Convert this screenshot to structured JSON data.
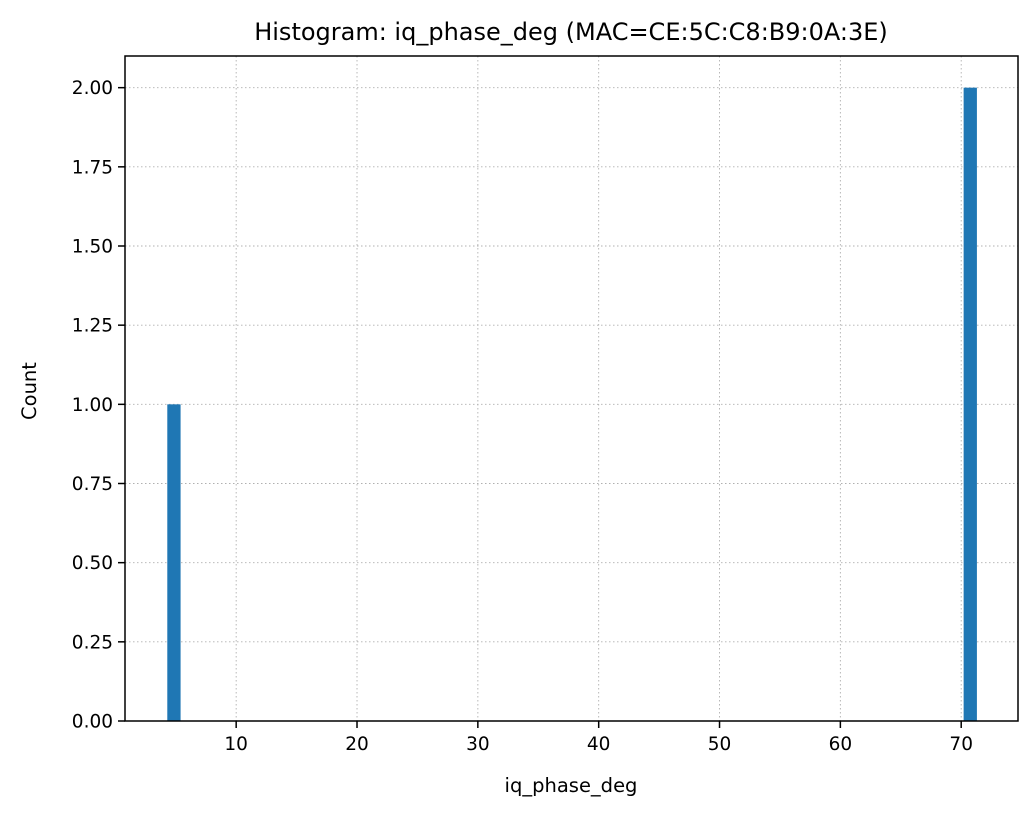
{
  "chart_data": {
    "type": "bar",
    "title": "Histogram: iq_phase_deg (MAC=CE:5C:C8:B9:0A:3E)",
    "xlabel": "iq_phase_deg",
    "ylabel": "Count",
    "xlim": [
      0.8,
      74.7
    ],
    "ylim": [
      0,
      2.1
    ],
    "xticks": [
      10,
      20,
      30,
      40,
      50,
      60,
      70
    ],
    "xtick_labels": [
      "10",
      "20",
      "30",
      "40",
      "50",
      "60",
      "70"
    ],
    "yticks": [
      0,
      0.25,
      0.5,
      0.75,
      1.0,
      1.25,
      1.5,
      1.75,
      2.0
    ],
    "ytick_labels": [
      "0.00",
      "0.25",
      "0.50",
      "0.75",
      "1.00",
      "1.25",
      "1.50",
      "1.75",
      "2.00"
    ],
    "bars": [
      {
        "x_start": 4.3,
        "x_end": 5.4,
        "count": 1
      },
      {
        "x_start": 70.2,
        "x_end": 71.3,
        "count": 2
      }
    ],
    "grid": true,
    "bar_color": "#1f77b4"
  }
}
